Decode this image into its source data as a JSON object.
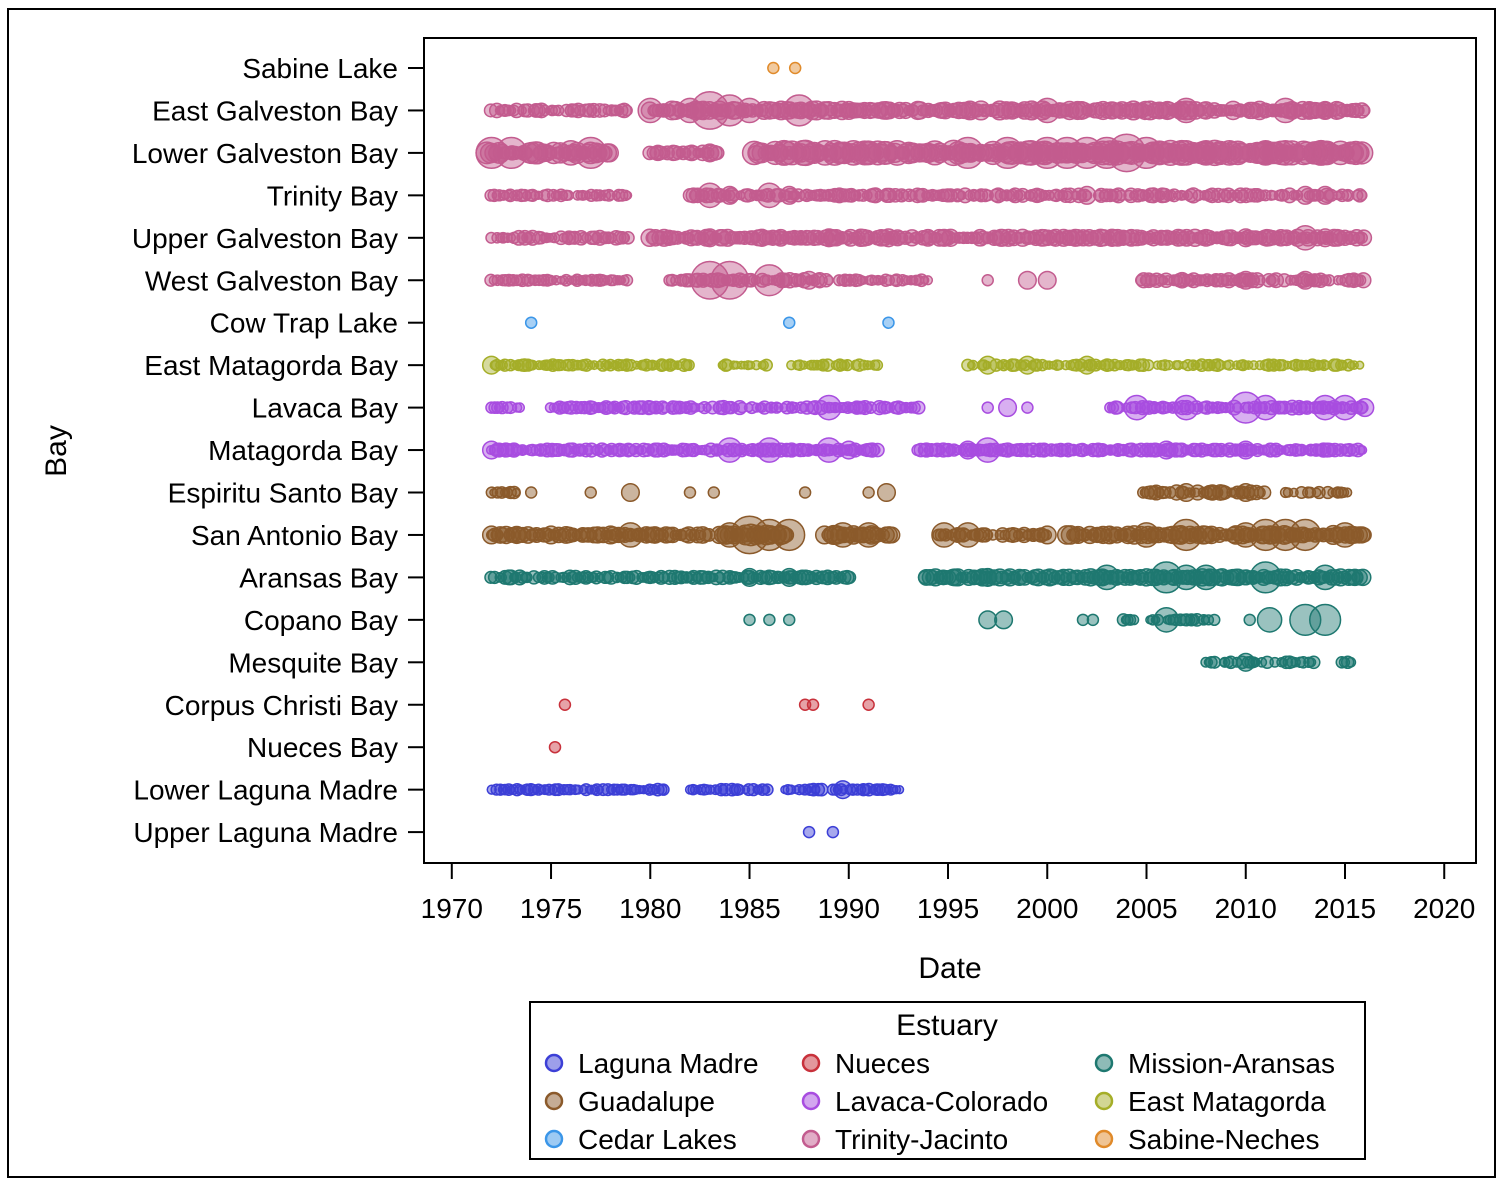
{
  "chart_data": {
    "type": "scatter",
    "subtype": "bubble",
    "title": "",
    "xlabel": "Date",
    "ylabel": "Bay",
    "xlim": [
      1968.6,
      2021.6
    ],
    "xticks": [
      "1970",
      "1975",
      "1980",
      "1985",
      "1990",
      "1995",
      "2000",
      "2005",
      "2010",
      "2015",
      "2020"
    ],
    "grid": false,
    "legend_title": "Estuary",
    "legend_position": "bottom",
    "categories": [
      "Sabine Lake",
      "East Galveston Bay",
      "Lower Galveston Bay",
      "Trinity Bay",
      "Upper Galveston Bay",
      "West Galveston Bay",
      "Cow Trap Lake",
      "East Matagorda Bay",
      "Lavaca Bay",
      "Matagorda Bay",
      "Espiritu Santo Bay",
      "San Antonio Bay",
      "Aransas Bay",
      "Copano Bay",
      "Mesquite Bay",
      "Corpus Christi Bay",
      "Nueces Bay",
      "Lower Laguna Madre",
      "Upper Laguna Madre"
    ],
    "series": [
      {
        "name": "Laguna Madre",
        "color": "#3c3fd6",
        "bays": [
          {
            "bay": "Lower Laguna Madre",
            "segments": [
              [
                1972.0,
                1975.5,
                1,
                0.9
              ],
              [
                1975.5,
                1980.8,
                1,
                0.85
              ],
              [
                1982.0,
                1986.0,
                1,
                0.9
              ],
              [
                1986.8,
                1988.7,
                1,
                0.9
              ],
              [
                1989.2,
                1992.8,
                1,
                0.9
              ]
            ],
            "points": [
              [
                1989.7,
                2
              ]
            ]
          },
          {
            "bay": "Upper Laguna Madre",
            "segments": [],
            "points": [
              [
                1988.0,
                1
              ],
              [
                1989.2,
                1
              ]
            ]
          }
        ]
      },
      {
        "name": "Guadalupe",
        "color": "#8b5a2b",
        "bays": [
          {
            "bay": "Espiritu Santo Bay",
            "segments": [
              [
                1972.0,
                1973.5,
                1,
                0.9
              ],
              [
                2004.8,
                2011.0,
                1.4,
                0.8
              ],
              [
                2012.0,
                2015.3,
                1,
                0.65
              ]
            ],
            "points": [
              [
                1974.0,
                1
              ],
              [
                1977.0,
                1
              ],
              [
                1979.0,
                2
              ],
              [
                1982.0,
                1
              ],
              [
                1983.2,
                1
              ],
              [
                1987.8,
                1
              ],
              [
                1991.0,
                1
              ],
              [
                1991.9,
                2
              ],
              [
                2007.0,
                2
              ],
              [
                2010.0,
                2
              ]
            ]
          },
          {
            "bay": "San Antonio Bay",
            "segments": [
              [
                1972.0,
                1983.0,
                1.6,
                1
              ],
              [
                1983.5,
                1987.0,
                2.2,
                1
              ],
              [
                1988.8,
                1992.2,
                1.8,
                1
              ],
              [
                1994.5,
                2000.0,
                1.4,
                0.85
              ],
              [
                2001.0,
                2016.0,
                1.8,
                1
              ]
            ],
            "points": [
              [
                1972.0,
                2
              ],
              [
                1975.0,
                2
              ],
              [
                1978.0,
                2
              ],
              [
                1979.0,
                3
              ],
              [
                1984.0,
                3
              ],
              [
                1985.0,
                5
              ],
              [
                1986.0,
                4
              ],
              [
                1987.0,
                4
              ],
              [
                1989.7,
                3
              ],
              [
                1991.0,
                3
              ],
              [
                1994.8,
                3
              ],
              [
                1996.0,
                3
              ],
              [
                2000.0,
                2
              ],
              [
                2005.0,
                3
              ],
              [
                2007.0,
                4
              ],
              [
                2010.0,
                3
              ],
              [
                2011.0,
                4
              ],
              [
                2012.0,
                4
              ],
              [
                2013.0,
                4
              ],
              [
                2015.0,
                3
              ]
            ]
          }
        ]
      },
      {
        "name": "Cedar Lakes",
        "color": "#3b96e8",
        "bays": [
          {
            "bay": "Cow Trap Lake",
            "segments": [],
            "points": [
              [
                1974.0,
                1
              ],
              [
                1987.0,
                1
              ],
              [
                1992.0,
                1
              ]
            ]
          }
        ]
      },
      {
        "name": "Nueces",
        "color": "#c8313b",
        "bays": [
          {
            "bay": "Corpus Christi Bay",
            "segments": [],
            "points": [
              [
                1975.7,
                1
              ],
              [
                1987.8,
                1
              ],
              [
                1988.2,
                1
              ],
              [
                1991.0,
                1
              ]
            ]
          },
          {
            "bay": "Nueces Bay",
            "segments": [],
            "points": [
              [
                1975.2,
                1
              ]
            ]
          }
        ]
      },
      {
        "name": "Lavaca-Colorado",
        "color": "#a84de0",
        "bays": [
          {
            "bay": "Lavaca Bay",
            "segments": [
              [
                1972.0,
                1973.5,
                1,
                0.85
              ],
              [
                1975.0,
                1993.5,
                1.2,
                0.85
              ],
              [
                2003.0,
                2016.0,
                1.3,
                0.85
              ]
            ],
            "points": [
              [
                1972.0,
                1
              ],
              [
                1989.0,
                3
              ],
              [
                1997.0,
                1
              ],
              [
                1998.0,
                2
              ],
              [
                1999.0,
                1
              ],
              [
                2004.5,
                3
              ],
              [
                2007.0,
                3
              ],
              [
                2010.0,
                4
              ],
              [
                2011.0,
                3
              ],
              [
                2014.0,
                3
              ],
              [
                2015.0,
                3
              ],
              [
                2016.0,
                2
              ]
            ]
          },
          {
            "bay": "Matagorda Bay",
            "segments": [
              [
                1972.0,
                1991.5,
                1.2,
                1
              ],
              [
                1993.5,
                2016.0,
                1.2,
                1
              ]
            ],
            "points": [
              [
                1972.0,
                2
              ],
              [
                1984.0,
                3
              ],
              [
                1986.0,
                3
              ],
              [
                1989.0,
                3
              ],
              [
                1990.0,
                2
              ],
              [
                1996.0,
                2
              ],
              [
                1997.0,
                3
              ],
              [
                2006.0,
                2
              ],
              [
                2010.0,
                2
              ]
            ]
          }
        ]
      },
      {
        "name": "Trinity-Jacinto",
        "color": "#c35c8f",
        "bays": [
          {
            "bay": "East Galveston Bay",
            "segments": [
              [
                1972.0,
                1979.0,
                1.3,
                0.9
              ],
              [
                1980.0,
                2016.0,
                1.8,
                1
              ]
            ],
            "points": [
              [
                1980.0,
                3
              ],
              [
                1982.0,
                3
              ],
              [
                1983.0,
                5
              ],
              [
                1984.0,
                4
              ],
              [
                1985.0,
                3
              ],
              [
                1987.5,
                4
              ],
              [
                1990.0,
                2
              ],
              [
                2000.0,
                3
              ],
              [
                2007.0,
                3
              ],
              [
                2012.0,
                3
              ],
              [
                2014.0,
                2
              ]
            ]
          },
          {
            "bay": "Lower Galveston Bay",
            "segments": [
              [
                1971.8,
                1978.0,
                2.2,
                1
              ],
              [
                1980.0,
                1983.5,
                1.4,
                0.85
              ],
              [
                1985.2,
                2016.0,
                2.6,
                1
              ]
            ],
            "points": [
              [
                1972.0,
                4
              ],
              [
                1973.0,
                4
              ],
              [
                1976.0,
                3
              ],
              [
                1977.0,
                4
              ],
              [
                1983.0,
                2
              ],
              [
                1996.0,
                4
              ],
              [
                1998.0,
                4
              ],
              [
                2000.0,
                4
              ],
              [
                2001.0,
                4
              ],
              [
                2002.0,
                4
              ],
              [
                2003.0,
                4
              ],
              [
                2004.0,
                5
              ],
              [
                2005.0,
                4
              ],
              [
                2007.0,
                3
              ],
              [
                2008.0,
                3
              ],
              [
                2011.0,
                3
              ],
              [
                2012.0,
                3
              ]
            ]
          },
          {
            "bay": "Trinity Bay",
            "segments": [
              [
                1972.0,
                1979.0,
                1,
                0.85
              ],
              [
                1982.0,
                2016.0,
                1.3,
                0.85
              ]
            ],
            "points": [
              [
                1983.0,
                3
              ],
              [
                1984.0,
                2
              ],
              [
                1986.0,
                3
              ],
              [
                1987.0,
                2
              ],
              [
                2002.0,
                2
              ],
              [
                2013.0,
                2
              ],
              [
                2014.0,
                2
              ]
            ]
          },
          {
            "bay": "Upper Galveston Bay",
            "segments": [
              [
                1972.0,
                1979.0,
                1.3,
                0.9
              ],
              [
                1980.0,
                2016.0,
                1.6,
                1
              ]
            ],
            "points": [
              [
                1983.0,
                2
              ],
              [
                1989.0,
                2
              ],
              [
                1992.0,
                2
              ],
              [
                2010.0,
                2
              ],
              [
                2013.0,
                3
              ],
              [
                2014.0,
                2
              ]
            ]
          },
          {
            "bay": "West Galveston Bay",
            "segments": [
              [
                1972.0,
                1979.0,
                1,
                0.85
              ],
              [
                1981.0,
                1989.0,
                1.4,
                0.9
              ],
              [
                1989.5,
                1994.0,
                1,
                0.75
              ],
              [
                2004.7,
                2016.0,
                1.4,
                0.9
              ]
            ],
            "points": [
              [
                1983.0,
                5
              ],
              [
                1984.0,
                5
              ],
              [
                1986.0,
                4
              ],
              [
                1988.0,
                2
              ],
              [
                1997.0,
                1
              ],
              [
                1999.0,
                2
              ],
              [
                2000.0,
                2
              ],
              [
                2010.0,
                2
              ],
              [
                2013.0,
                2
              ]
            ]
          }
        ]
      },
      {
        "name": "Mission-Aransas",
        "color": "#1e7870",
        "bays": [
          {
            "bay": "Aransas Bay",
            "segments": [
              [
                1972.0,
                1990.2,
                1.3,
                0.9
              ],
              [
                1993.8,
                2016.0,
                1.6,
                1
              ]
            ],
            "points": [
              [
                1985.0,
                2
              ],
              [
                1987.0,
                2
              ],
              [
                1997.0,
                2
              ],
              [
                2003.0,
                3
              ],
              [
                2006.0,
                4
              ],
              [
                2007.0,
                3
              ],
              [
                2008.0,
                3
              ],
              [
                2011.0,
                4
              ],
              [
                2014.0,
                3
              ]
            ]
          },
          {
            "bay": "Copano Bay",
            "segments": [
              [
                2003.8,
                2008.5,
                1,
                0.8
              ]
            ],
            "points": [
              [
                1985.0,
                1
              ],
              [
                1986.0,
                1
              ],
              [
                1987.0,
                1
              ],
              [
                1997.0,
                2
              ],
              [
                1997.8,
                2
              ],
              [
                2001.8,
                1
              ],
              [
                2002.3,
                1
              ],
              [
                2006.0,
                3
              ],
              [
                2010.2,
                1
              ],
              [
                2011.2,
                3
              ],
              [
                2013.0,
                4
              ],
              [
                2014.0,
                4
              ]
            ]
          },
          {
            "bay": "Mesquite Bay",
            "segments": [
              [
                2008.0,
                2013.5,
                1,
                0.75
              ],
              [
                2014.7,
                2015.3,
                1,
                0.9
              ]
            ],
            "points": [
              [
                2010.0,
                2
              ]
            ]
          }
        ]
      },
      {
        "name": "East Matagorda",
        "color": "#a5ae28",
        "bays": [
          {
            "bay": "East Matagorda Bay",
            "segments": [
              [
                1972.0,
                1982.0,
                1,
                0.85
              ],
              [
                1983.5,
                1986.0,
                1,
                0.8
              ],
              [
                1987.0,
                1991.5,
                1,
                0.7
              ],
              [
                1996.0,
                2016.0,
                1,
                0.75
              ]
            ],
            "points": [
              [
                1972.0,
                2
              ],
              [
                1997.0,
                2
              ],
              [
                1999.0,
                2
              ],
              [
                2002.0,
                2
              ]
            ]
          }
        ]
      },
      {
        "name": "Sabine-Neches",
        "color": "#e08a2a",
        "bays": [
          {
            "bay": "Sabine Lake",
            "segments": [],
            "points": [
              [
                1986.2,
                1
              ],
              [
                1987.3,
                1
              ]
            ]
          }
        ]
      }
    ]
  }
}
